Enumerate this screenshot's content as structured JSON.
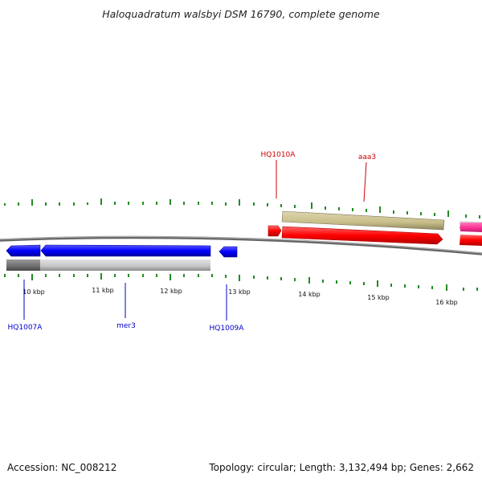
{
  "title": "Haloquadratum walsbyi DSM 16790, complete genome",
  "footer": {
    "accession": "Accession: NC_008212",
    "summary": "Topology: circular; Length: 3,132,494 bp; Genes: 2,662"
  },
  "genes": [
    {
      "label": "HQ1007A",
      "color": "#0000cc"
    },
    {
      "label": "mer3",
      "color": "#0000cc"
    },
    {
      "label": "HQ1009A",
      "color": "#0000cc"
    },
    {
      "label": "HQ1010A",
      "color": "#cc0000"
    },
    {
      "label": "aaa3",
      "color": "#cc0000"
    }
  ],
  "kbp_labels": [
    "10 kbp",
    "11 kbp",
    "12 kbp",
    "13 kbp",
    "14 kbp",
    "15 kbp",
    "16 kbp"
  ],
  "colors": {
    "forward_cds": "#ff0000",
    "reverse_cds": "#0000ff",
    "pink_cds": "#ff3399",
    "khaki_track": "#c8be8a",
    "gray_track": "#bfbfbf",
    "tick": "#228b22",
    "backbone": "#777777"
  }
}
